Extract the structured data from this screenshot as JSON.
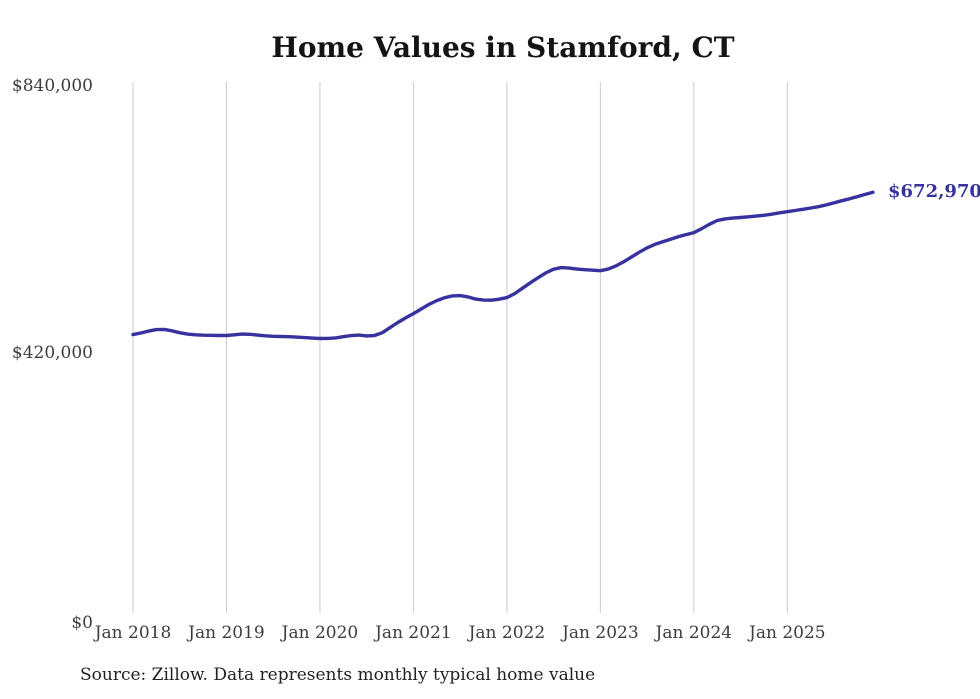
{
  "title": "Home Values in Stamford, CT",
  "source_note": "Source: Zillow. Data represents monthly typical home value",
  "end_label": "$672,970",
  "colors": {
    "line": "#37329e",
    "grid": "#cbcbcb",
    "title": "#141414",
    "axis_label": "#3d3d3d",
    "end_label": "#37329e",
    "background": "#ffffff"
  },
  "chart_data": {
    "type": "line",
    "title": "Home Values in Stamford, CT",
    "xlabel": "",
    "ylabel": "",
    "ylim": [
      0,
      840000
    ],
    "grid": "vertical-only",
    "legend": "none",
    "y_ticks": [
      {
        "label": "$840,000",
        "value": 840000
      },
      {
        "label": "$420,000",
        "value": 420000
      },
      {
        "label": "$0",
        "value": 0
      }
    ],
    "x_ticks": [
      {
        "label": "Jan 2018",
        "index": 0
      },
      {
        "label": "Jan 2019",
        "index": 12
      },
      {
        "label": "Jan 2020",
        "index": 24
      },
      {
        "label": "Jan 2021",
        "index": 36
      },
      {
        "label": "Jan 2022",
        "index": 48
      },
      {
        "label": "Jan 2023",
        "index": 60
      },
      {
        "label": "Jan 2024",
        "index": 72
      },
      {
        "label": "Jan 2025",
        "index": 84
      }
    ],
    "end_annotation": {
      "label": "$672,970",
      "value": 672970
    },
    "x": [
      "Jan 2018",
      "Feb 2018",
      "Mar 2018",
      "Apr 2018",
      "May 2018",
      "Jun 2018",
      "Jul 2018",
      "Aug 2018",
      "Sep 2018",
      "Oct 2018",
      "Nov 2018",
      "Dec 2018",
      "Jan 2019",
      "Feb 2019",
      "Mar 2019",
      "Apr 2019",
      "May 2019",
      "Jun 2019",
      "Jul 2019",
      "Aug 2019",
      "Sep 2019",
      "Oct 2019",
      "Nov 2019",
      "Dec 2019",
      "Jan 2020",
      "Feb 2020",
      "Mar 2020",
      "Apr 2020",
      "May 2020",
      "Jun 2020",
      "Jul 2020",
      "Aug 2020",
      "Sep 2020",
      "Oct 2020",
      "Nov 2020",
      "Dec 2020",
      "Jan 2021",
      "Feb 2021",
      "Mar 2021",
      "Apr 2021",
      "May 2021",
      "Jun 2021",
      "Jul 2021",
      "Aug 2021",
      "Sep 2021",
      "Oct 2021",
      "Nov 2021",
      "Dec 2021",
      "Jan 2022",
      "Feb 2022",
      "Mar 2022",
      "Apr 2022",
      "May 2022",
      "Jun 2022",
      "Jul 2022",
      "Aug 2022",
      "Sep 2022",
      "Oct 2022",
      "Nov 2022",
      "Dec 2022",
      "Jan 2023",
      "Feb 2023",
      "Mar 2023",
      "Apr 2023",
      "May 2023",
      "Jun 2023",
      "Jul 2023",
      "Aug 2023",
      "Sep 2023",
      "Oct 2023",
      "Nov 2023",
      "Dec 2023",
      "Jan 2024",
      "Feb 2024",
      "Mar 2024",
      "Apr 2024",
      "May 2024",
      "Jun 2024",
      "Jul 2024",
      "Aug 2024",
      "Sep 2024",
      "Oct 2024",
      "Nov 2024",
      "Dec 2024",
      "Jan 2025",
      "Feb 2025",
      "Mar 2025",
      "Apr 2025",
      "May 2025",
      "Jun 2025",
      "Jul 2025",
      "Aug 2025",
      "Sep 2025",
      "Oct 2025",
      "Nov 2025",
      "Dec 2025"
    ],
    "values": [
      449000,
      451500,
      454500,
      456800,
      457200,
      455000,
      452000,
      449800,
      448600,
      448000,
      447800,
      447600,
      447500,
      448600,
      449800,
      449400,
      448200,
      447000,
      446300,
      446000,
      445700,
      445000,
      444200,
      443400,
      442800,
      443000,
      443800,
      445600,
      447400,
      448200,
      446900,
      447500,
      452000,
      460000,
      468000,
      475200,
      482000,
      489200,
      496500,
      502500,
      507000,
      509800,
      510300,
      508200,
      504800,
      503200,
      503000,
      504700,
      507200,
      513500,
      522000,
      530500,
      538500,
      546000,
      551800,
      554300,
      553500,
      552000,
      551000,
      550200,
      549500,
      552000,
      557000,
      563500,
      571000,
      578500,
      585500,
      590800,
      595000,
      599000,
      602900,
      606200,
      609200,
      615500,
      622500,
      628500,
      631000,
      632200,
      633200,
      634300,
      635400,
      636600,
      638400,
      640500,
      642200,
      644100,
      646100,
      648100,
      650200,
      653000,
      656300,
      659500,
      662600,
      666000,
      669500,
      672970
    ]
  }
}
